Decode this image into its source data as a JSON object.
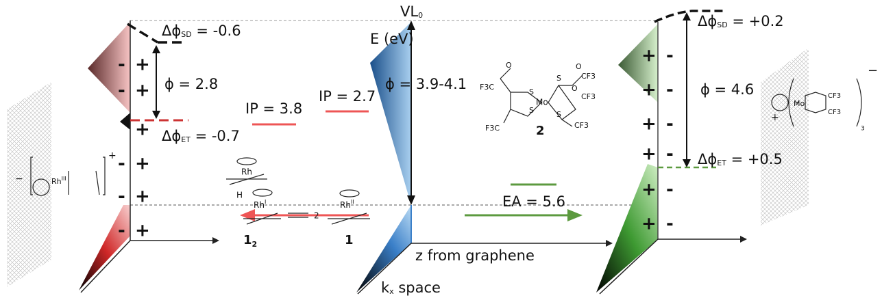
{
  "center": {
    "vacuum_level": {
      "main": "VL",
      "sub": "0"
    },
    "energy_axis": "E (eV)",
    "work_function": "ϕ = 3.9-4.1",
    "x_axis": "z from graphene",
    "k_axis": {
      "main": "k",
      "sub": "x",
      "rest": " space"
    }
  },
  "left": {
    "delta_sd": {
      "main": "Δϕ",
      "sub": "SD",
      "rest": " = -0.6"
    },
    "work_function": "ϕ = 2.8",
    "delta_et": {
      "main": "Δϕ",
      "sub": "ET",
      "rest": " = -0.7"
    },
    "ip_dimer": "IP = 3.8",
    "ip_monomer": "IP = 2.7",
    "plus": "+",
    "minus": "-",
    "dimer_label": {
      "main": "1",
      "sub": "2"
    },
    "monomer_label": "1",
    "dimer_number": "2",
    "rh_top": "Rh",
    "rh_dimer": {
      "main": "Rh",
      "sup": "I"
    },
    "rh_monomer": {
      "main": "Rh",
      "sup": "II"
    },
    "hydrogen": "H",
    "cation": {
      "main": "Rh",
      "sup": "III"
    },
    "cation_charge": "+",
    "graphene_charge": "−"
  },
  "right": {
    "delta_sd": {
      "main": "Δϕ",
      "sub": "SD",
      "rest": " = +0.2"
    },
    "work_function": "ϕ = 4.6",
    "delta_et": {
      "main": "Δϕ",
      "sub": "ET",
      "rest": " = +0.5"
    },
    "ea": "EA = 5.6",
    "plus": "+",
    "minus": "-",
    "complex_label": "2",
    "metal": "Mo",
    "groups": [
      "F3C",
      "F3C",
      "CF3",
      "CF3",
      "CF3",
      "S",
      "S",
      "S",
      "S",
      "O",
      "O",
      "O"
    ],
    "anion": {
      "metal": "Mo",
      "group1": "CF3",
      "group2": "CF3",
      "count": "3",
      "charge": "−"
    },
    "graphene_charge": "+"
  }
}
